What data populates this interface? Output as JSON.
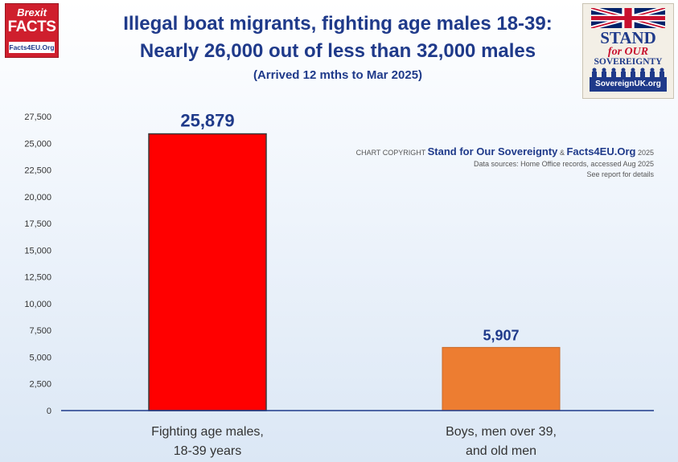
{
  "header": {
    "title_line1": "Illegal boat migrants, fighting age males 18-39:",
    "title_line2": "Nearly 26,000 out of less than 32,000 males",
    "subtitle": "(Arrived 12 mths to Mar 2025)"
  },
  "logo_left": {
    "line1": "Brexit",
    "line2": "FACTS",
    "line3": "Facts4EU.Org"
  },
  "logo_right": {
    "line1": "STAND",
    "line2": "for OUR",
    "line3": "SOVEREIGNTY",
    "url": "SovereignUK.org"
  },
  "credits": {
    "prefix": "CHART COPYRIGHT",
    "brand1": "Stand for Our Sovereignty",
    "amp": "&",
    "brand2": "Facts4EU.Org",
    "year": "2025",
    "source": "Data sources: Home Office records, accessed Aug 2025",
    "note": "See report for details"
  },
  "chart_data": {
    "type": "bar",
    "categories": [
      "Fighting age males, 18-39 years",
      "Boys, men over 39, and old men"
    ],
    "category_lines": [
      [
        "Fighting age males,",
        "18-39 years"
      ],
      [
        "Boys, men over 39,",
        "and old men"
      ]
    ],
    "values": [
      25879,
      5907
    ],
    "value_labels": [
      "25,879",
      "5,907"
    ],
    "bar_colors": [
      "#ff0000",
      "#ed7d31"
    ],
    "ylim": [
      0,
      27500
    ],
    "yticks": [
      0,
      2500,
      5000,
      7500,
      10000,
      12500,
      15000,
      17500,
      20000,
      22500,
      25000,
      27500
    ],
    "ytick_labels": [
      "0",
      "2,500",
      "5,000",
      "7,500",
      "10,000",
      "12,500",
      "15,000",
      "17,500",
      "20,000",
      "22,500",
      "25,000",
      "27,500"
    ],
    "grid": false,
    "legend": "none"
  }
}
